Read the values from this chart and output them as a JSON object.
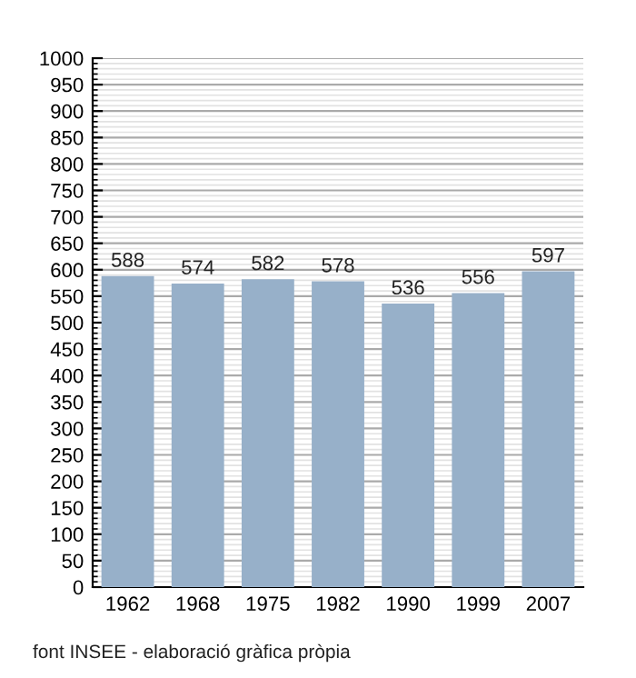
{
  "chart_data": {
    "type": "bar",
    "categories": [
      "1962",
      "1968",
      "1975",
      "1982",
      "1990",
      "1999",
      "2007"
    ],
    "values": [
      588,
      574,
      582,
      578,
      536,
      556,
      597
    ],
    "color": "#97b0c9",
    "data_labels": true,
    "ylim": [
      0,
      1000
    ],
    "yticks": [
      0,
      50,
      100,
      150,
      200,
      250,
      300,
      350,
      400,
      450,
      500,
      550,
      600,
      650,
      700,
      750,
      800,
      850,
      900,
      950,
      1000
    ],
    "grid": "y",
    "annotations": [
      "font INSEE - elaboració gràfica pròpia"
    ]
  }
}
